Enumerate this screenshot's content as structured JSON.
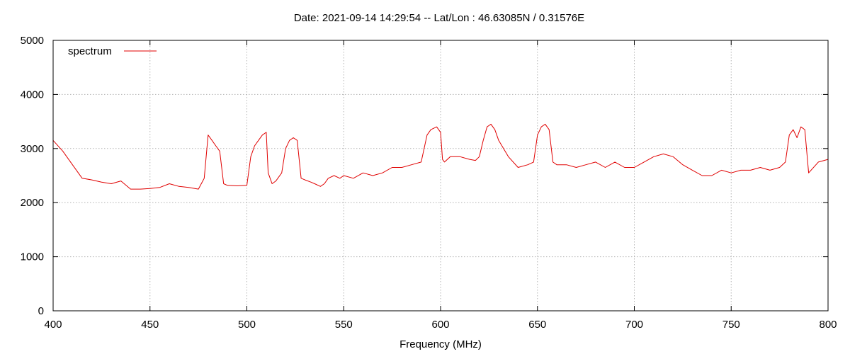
{
  "chart_data": {
    "type": "line",
    "title": "Date: 2021-09-14 14:29:54  --  Lat/Lon : 46.63085N / 0.31576E",
    "xlabel": "Frequency (MHz)",
    "ylabel": "",
    "xlim": [
      400,
      800
    ],
    "ylim": [
      0,
      5000
    ],
    "x_ticks": [
      400,
      450,
      500,
      550,
      600,
      650,
      700,
      750,
      800
    ],
    "y_ticks": [
      0,
      1000,
      2000,
      3000,
      4000,
      5000
    ],
    "grid": true,
    "legend_position": "top-left",
    "line_color": "#e00000",
    "series": [
      {
        "name": "spectrum",
        "x": [
          400,
          405,
          410,
          415,
          420,
          425,
          430,
          435,
          440,
          445,
          450,
          455,
          460,
          465,
          470,
          475,
          478,
          480,
          482,
          484,
          486,
          488,
          490,
          495,
          500,
          502,
          504,
          506,
          508,
          510,
          511,
          513,
          515,
          518,
          520,
          522,
          524,
          526,
          528,
          530,
          533,
          535,
          538,
          540,
          542,
          545,
          548,
          550,
          555,
          560,
          565,
          570,
          575,
          580,
          585,
          590,
          593,
          595,
          598,
          600,
          601,
          602,
          605,
          610,
          615,
          618,
          620,
          622,
          624,
          626,
          628,
          630,
          635,
          640,
          645,
          648,
          650,
          652,
          654,
          656,
          658,
          660,
          665,
          670,
          675,
          680,
          685,
          690,
          695,
          700,
          705,
          710,
          715,
          720,
          725,
          730,
          735,
          740,
          745,
          750,
          755,
          760,
          765,
          770,
          775,
          778,
          780,
          782,
          784,
          786,
          788,
          790,
          795,
          800
        ],
        "values": [
          3150,
          2950,
          2700,
          2450,
          2420,
          2380,
          2350,
          2400,
          2250,
          2250,
          2260,
          2280,
          2350,
          2300,
          2280,
          2250,
          2450,
          3250,
          3150,
          3050,
          2950,
          2350,
          2320,
          2310,
          2320,
          2850,
          3050,
          3150,
          3250,
          3300,
          2550,
          2350,
          2400,
          2550,
          3000,
          3150,
          3200,
          3150,
          2450,
          2420,
          2380,
          2350,
          2300,
          2350,
          2450,
          2500,
          2450,
          2500,
          2450,
          2550,
          2500,
          2550,
          2650,
          2650,
          2700,
          2750,
          3250,
          3350,
          3400,
          3300,
          2800,
          2750,
          2850,
          2850,
          2800,
          2780,
          2850,
          3150,
          3400,
          3450,
          3350,
          3150,
          2850,
          2650,
          2700,
          2750,
          3250,
          3400,
          3450,
          3350,
          2750,
          2700,
          2700,
          2650,
          2700,
          2750,
          2650,
          2750,
          2650,
          2650,
          2750,
          2850,
          2900,
          2850,
          2700,
          2600,
          2500,
          2500,
          2600,
          2550,
          2600,
          2600,
          2650,
          2600,
          2650,
          2750,
          3250,
          3350,
          3200,
          3400,
          3350,
          2550,
          2750,
          2800
        ]
      }
    ]
  }
}
